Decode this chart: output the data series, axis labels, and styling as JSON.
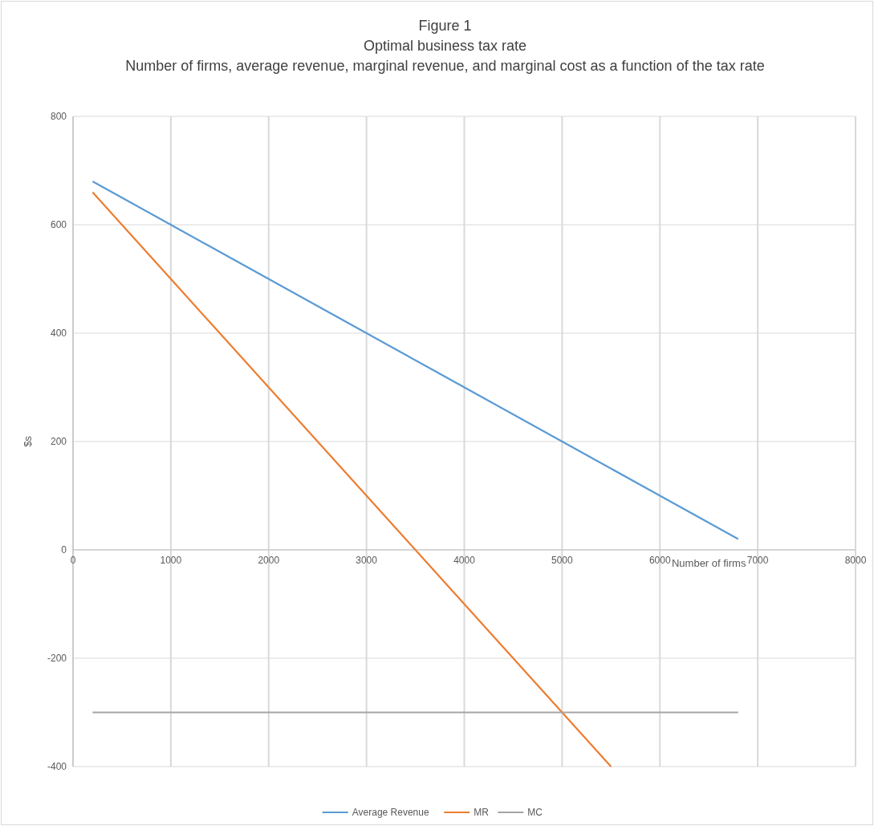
{
  "chart_data": {
    "type": "line",
    "title": "Figure 1\nOptimal business tax rate",
    "subtitle": "Number of  firms, average revenue, marginal revenue, and marginal cost as a function of the tax rate",
    "xlabel": "Number  of firms",
    "ylabel": "$s",
    "xlim": [
      0,
      8000
    ],
    "xticks": [
      0,
      1000,
      2000,
      3000,
      4000,
      5000,
      6000,
      7000,
      8000
    ],
    "ylim": [
      -400,
      800
    ],
    "yticks": [
      -400,
      -200,
      0,
      200,
      400,
      600,
      800
    ],
    "grid": true,
    "legend": "bottom",
    "marker": "none",
    "line_style": "solid",
    "series": [
      {
        "name": "Average Revenue",
        "color": "#5b9bd5",
        "x": [
          200,
          600,
          1000,
          1400,
          1800,
          2200,
          2600,
          3000,
          3400,
          3800,
          4200,
          4600,
          5000,
          5400,
          5800,
          6200,
          6600,
          6800
        ],
        "values": [
          680,
          640,
          600,
          560,
          520,
          480,
          440,
          400,
          360,
          320,
          280,
          240,
          200,
          160,
          120,
          80,
          40,
          20
        ]
      },
      {
        "name": "MR",
        "color": "#ed7d31",
        "x": [
          200,
          600,
          1000,
          1400,
          1800,
          2200,
          2600,
          3000,
          3400,
          3800,
          4200,
          4600,
          5000,
          5400,
          5500
        ],
        "values": [
          660,
          580,
          500,
          420,
          340,
          260,
          180,
          100,
          20,
          -60,
          -140,
          -220,
          -300,
          -380,
          -400
        ]
      },
      {
        "name": "MC",
        "color": "#a5a5a5",
        "x": [
          200,
          6800
        ],
        "values": [
          -300,
          -300
        ]
      }
    ]
  }
}
